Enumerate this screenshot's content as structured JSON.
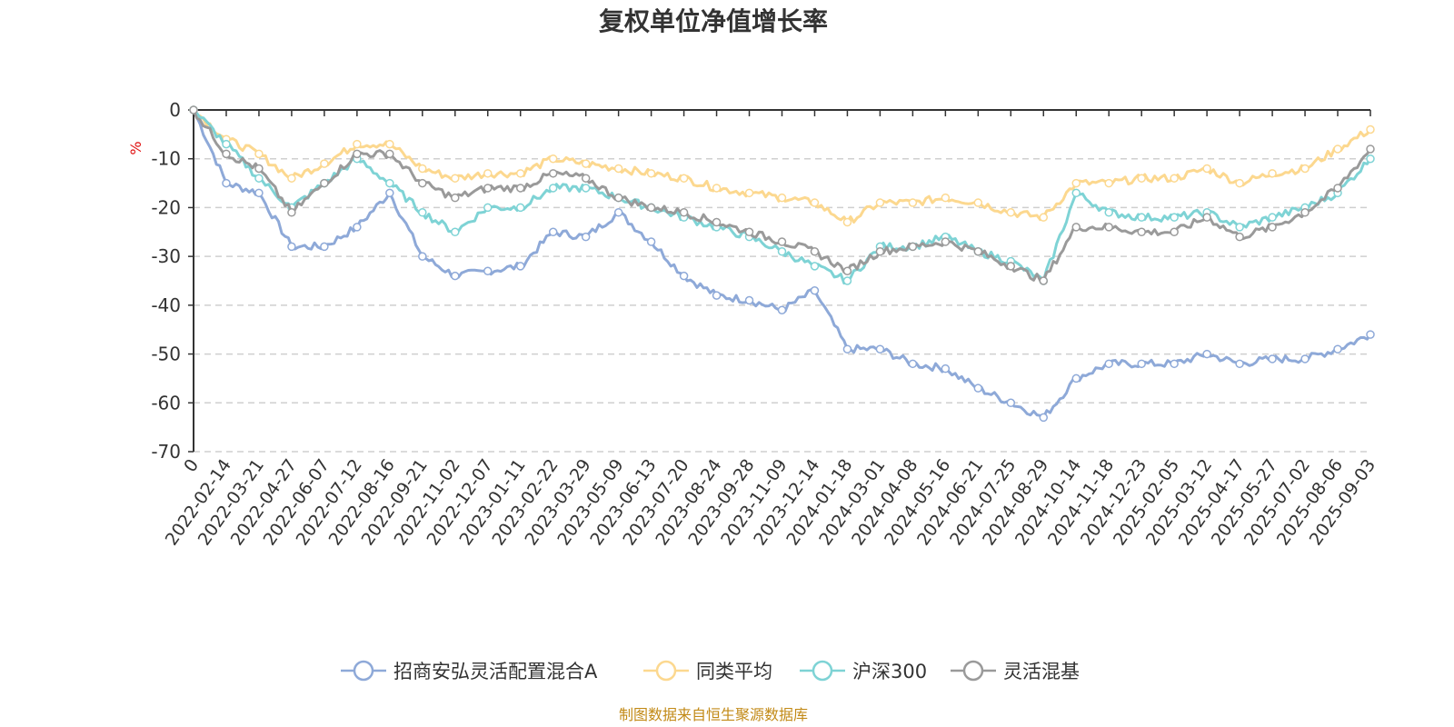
{
  "chart_data": {
    "type": "line",
    "title": "复权单位净值增长率",
    "ylabel": "%",
    "ylim": [
      -70,
      0
    ],
    "yticks": [
      0,
      -10,
      -20,
      -30,
      -40,
      -50,
      -60,
      -70
    ],
    "grid": true,
    "legend_position": "bottom",
    "x_tick_labels": [
      "0",
      "2022-02-14",
      "2022-03-21",
      "2022-04-27",
      "2022-06-07",
      "2022-07-12",
      "2022-08-16",
      "2022-09-21",
      "2022-11-02",
      "2022-12-07",
      "2023-01-11",
      "2023-02-22",
      "2023-03-29",
      "2023-05-09",
      "2023-06-13",
      "2023-07-20",
      "2023-08-24",
      "2023-09-28",
      "2023-11-09",
      "2023-12-14",
      "2024-01-18",
      "2024-03-01",
      "2024-04-08",
      "2024-05-16",
      "2024-06-21",
      "2024-07-25",
      "2024-08-29",
      "2024-10-14",
      "2024-11-18",
      "2024-12-23",
      "2025-02-05",
      "2025-03-12",
      "2025-04-17",
      "2025-05-27",
      "2025-07-02",
      "2025-08-06",
      "2025-09-03"
    ],
    "series": [
      {
        "name": "招商安弘灵活配置混合A",
        "color": "#8ea9d8",
        "values": [
          0,
          -15,
          -17,
          -28,
          -28,
          -24,
          -17,
          -30,
          -34,
          -33,
          -32,
          -25,
          -26,
          -21,
          -27,
          -34,
          -38,
          -39,
          -41,
          -37,
          -49,
          -49,
          -52,
          -53,
          -57,
          -60,
          -63,
          -55,
          -52,
          -52,
          -52,
          -50,
          -52,
          -51,
          -51,
          -49,
          -46
        ]
      },
      {
        "name": "同类平均",
        "color": "#fcd88f",
        "values": [
          0,
          -6,
          -9,
          -14,
          -11,
          -7,
          -7,
          -12,
          -14,
          -13,
          -13,
          -10,
          -11,
          -12,
          -13,
          -14,
          -16,
          -17,
          -18,
          -19,
          -23,
          -19,
          -19,
          -18,
          -19,
          -21,
          -22,
          -15,
          -15,
          -14,
          -14,
          -12,
          -15,
          -13,
          -12,
          -8,
          -4
        ]
      },
      {
        "name": "沪深300",
        "color": "#7ed3d5",
        "values": [
          0,
          -7,
          -14,
          -20,
          -15,
          -10,
          -15,
          -21,
          -25,
          -20,
          -20,
          -16,
          -16,
          -18,
          -20,
          -22,
          -24,
          -26,
          -29,
          -32,
          -35,
          -28,
          -28,
          -26,
          -29,
          -31,
          -35,
          -17,
          -21,
          -22,
          -22,
          -21,
          -24,
          -22,
          -20,
          -17,
          -10
        ]
      },
      {
        "name": "灵活混基",
        "color": "#9a9a9a",
        "values": [
          0,
          -9,
          -12,
          -21,
          -15,
          -9,
          -9,
          -15,
          -18,
          -16,
          -16,
          -13,
          -14,
          -18,
          -20,
          -21,
          -23,
          -25,
          -27,
          -29,
          -33,
          -29,
          -28,
          -27,
          -29,
          -32,
          -35,
          -24,
          -24,
          -25,
          -25,
          -22,
          -26,
          -24,
          -21,
          -16,
          -8
        ]
      }
    ],
    "source_note": "制图数据来自恒生聚源数据库"
  }
}
